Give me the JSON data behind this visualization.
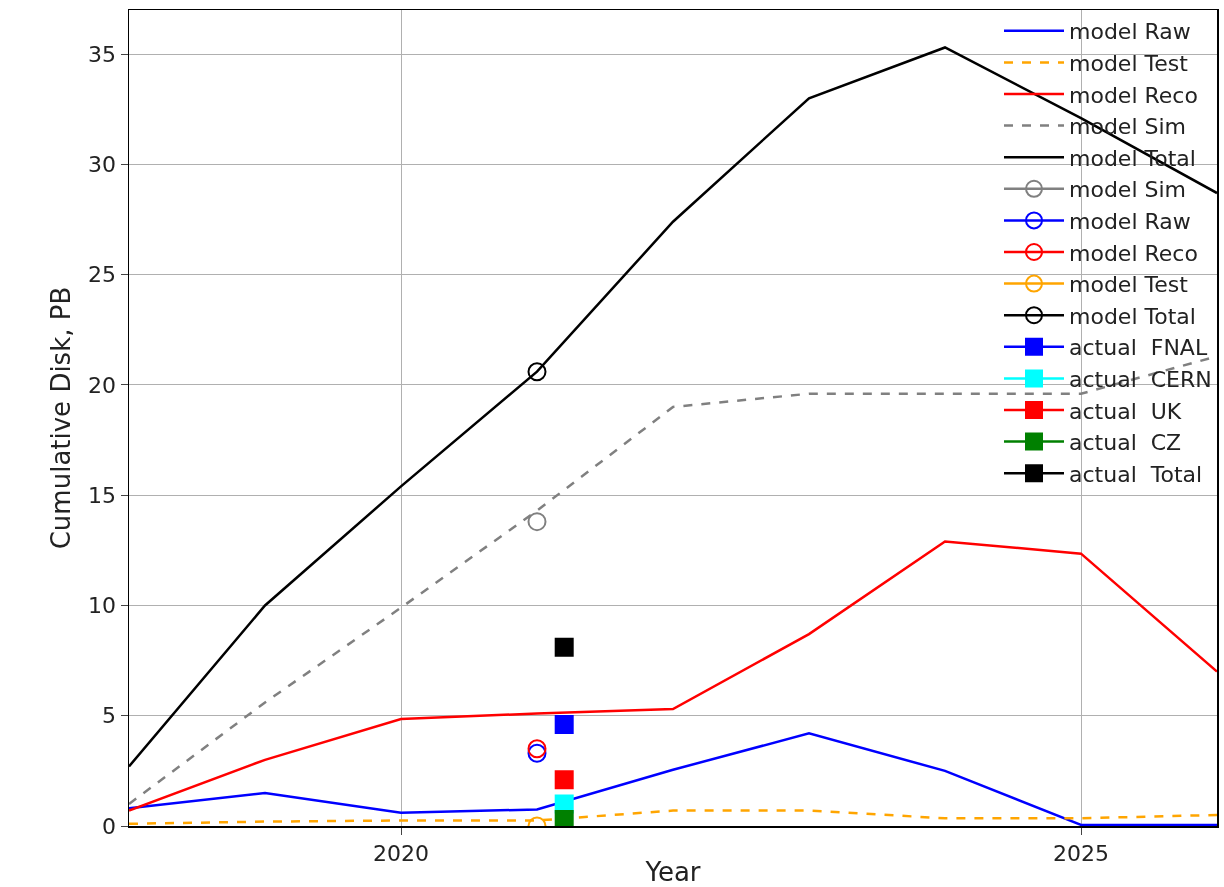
{
  "chart_data": {
    "type": "line",
    "xlabel": "Year",
    "ylabel": "Cumulative Disk, PB",
    "xlim": [
      2018,
      2026
    ],
    "xticks": [
      2020,
      2025
    ],
    "ylim": [
      0,
      37
    ],
    "yticks": [
      0,
      5,
      10,
      15,
      20,
      25,
      30,
      35
    ],
    "grid": true,
    "legend": "top right",
    "series": [
      {
        "name": "model Raw",
        "color": "#0000ff",
        "line_style": "solid",
        "x": [
          2018,
          2019,
          2020,
          2021,
          2022,
          2023,
          2024,
          2025,
          2026
        ],
        "values": [
          0.8,
          1.5,
          0.6,
          0.75,
          2.55,
          4.2,
          2.5,
          0.05,
          0.05
        ]
      },
      {
        "name": "model Test",
        "color": "#ffa500",
        "line_style": "dashed",
        "x": [
          2018,
          2019,
          2020,
          2021,
          2022,
          2023,
          2024,
          2025,
          2026
        ],
        "values": [
          0.1,
          0.2,
          0.25,
          0.25,
          0.7,
          0.7,
          0.35,
          0.35,
          0.5
        ]
      },
      {
        "name": "model Reco",
        "color": "#ff0000",
        "line_style": "solid",
        "x": [
          2018,
          2019,
          2020,
          2021,
          2022,
          2023,
          2024,
          2025,
          2026
        ],
        "values": [
          0.7,
          3.0,
          4.85,
          5.1,
          5.3,
          8.7,
          12.9,
          12.35,
          7.0
        ]
      },
      {
        "name": "model Sim",
        "color": "#808080",
        "line_style": "dashed",
        "x": [
          2018,
          2019,
          2020,
          2021,
          2022,
          2023,
          2024,
          2025,
          2026
        ],
        "values": [
          1.0,
          5.6,
          9.9,
          14.3,
          19.0,
          19.6,
          19.6,
          19.6,
          21.3
        ]
      },
      {
        "name": "model Total",
        "color": "#000000",
        "line_style": "solid",
        "x": [
          2018,
          2019,
          2020,
          2021,
          2022,
          2023,
          2024,
          2025,
          2026
        ],
        "values": [
          2.7,
          10.0,
          15.4,
          20.6,
          27.4,
          33.0,
          35.3,
          32.1,
          28.7
        ]
      },
      {
        "name": "model Sim",
        "type": "scatter",
        "marker": "circle",
        "color": "#808080",
        "x": [
          2021
        ],
        "values": [
          13.8
        ]
      },
      {
        "name": "model Raw",
        "type": "scatter",
        "marker": "circle",
        "color": "#0000ff",
        "x": [
          2021
        ],
        "values": [
          3.3
        ]
      },
      {
        "name": "model Reco",
        "type": "scatter",
        "marker": "circle",
        "color": "#ff0000",
        "x": [
          2021
        ],
        "values": [
          3.5
        ]
      },
      {
        "name": "model Test",
        "type": "scatter",
        "marker": "circle",
        "color": "#ffa500",
        "x": [
          2021
        ],
        "values": [
          0
        ]
      },
      {
        "name": "model Total",
        "type": "scatter",
        "marker": "circle",
        "color": "#000000",
        "x": [
          2021
        ],
        "values": [
          20.6
        ]
      },
      {
        "name": "actual  FNAL",
        "type": "scatter",
        "marker": "square",
        "color": "#0000ff",
        "x": [
          2021.2
        ],
        "values": [
          4.6
        ]
      },
      {
        "name": "actual  CERN",
        "type": "scatter",
        "marker": "square",
        "color": "#00ffff",
        "x": [
          2021.2
        ],
        "values": [
          1.0
        ]
      },
      {
        "name": "actual  UK",
        "type": "scatter",
        "marker": "square",
        "color": "#ff0000",
        "x": [
          2021.2
        ],
        "values": [
          2.1
        ]
      },
      {
        "name": "actual  CZ",
        "type": "scatter",
        "marker": "square",
        "color": "#008000",
        "x": [
          2021.2
        ],
        "values": [
          0.3
        ]
      },
      {
        "name": "actual  Total",
        "type": "scatter",
        "marker": "square",
        "color": "#000000",
        "x": [
          2021.2
        ],
        "values": [
          8.1
        ]
      }
    ]
  }
}
